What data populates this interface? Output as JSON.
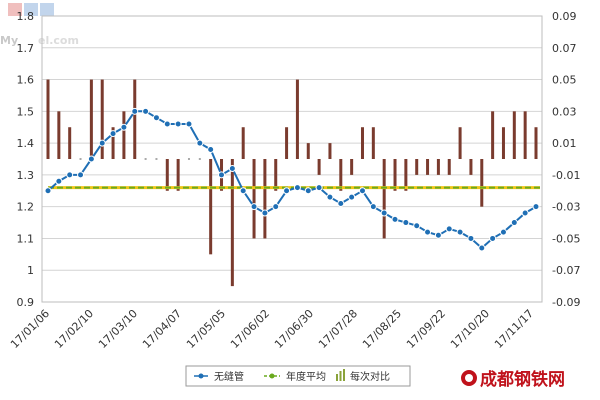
{
  "chart_data": {
    "type": "line",
    "title": "",
    "xlabel": "",
    "ylabel": "",
    "ylim": [
      0.9,
      1.8
    ],
    "y2lim": [
      -0.09,
      0.09
    ],
    "yticks": [
      "1.8",
      "1.7",
      "1.6",
      "1.5",
      "1.4",
      "1.3",
      "1.2",
      "1.1",
      "1",
      "0.9"
    ],
    "y2ticks": [
      "0.09",
      "0.07",
      "0.05",
      "0.03",
      "0.01",
      "-0.01",
      "-0.03",
      "-0.05",
      "-0.07",
      "-0.09"
    ],
    "xticks": [
      "17/01/06",
      "17/02/10",
      "17/03/10",
      "17/04/07",
      "17/05/05",
      "17/06/02",
      "17/06/30",
      "17/07/28",
      "17/08/25",
      "17/09/22",
      "17/10/20",
      "17/11/17"
    ],
    "grid": true,
    "legend_position": "bottom-center",
    "series": [
      {
        "name": "无缝管",
        "color": "#1f6fb5",
        "values": [
          1.25,
          1.28,
          1.3,
          1.3,
          1.35,
          1.4,
          1.43,
          1.45,
          1.5,
          1.5,
          1.48,
          1.46,
          1.46,
          1.46,
          1.4,
          1.38,
          1.3,
          1.32,
          1.25,
          1.2,
          1.18,
          1.2,
          1.25,
          1.26,
          1.25,
          1.26,
          1.23,
          1.21,
          1.23,
          1.25,
          1.2,
          1.18,
          1.16,
          1.15,
          1.14,
          1.12,
          1.11,
          1.13,
          1.12,
          1.1,
          1.07,
          1.1,
          1.12,
          1.15,
          1.18,
          1.2
        ]
      },
      {
        "name": "年度平均",
        "color": "#6aaa1e",
        "value": 1.26
      },
      {
        "name": "每次对比",
        "color": "#7a3b2e",
        "values": [
          0.05,
          0.03,
          0.02,
          0,
          0.05,
          0.05,
          0.02,
          0.03,
          0.05,
          0,
          0,
          -0.02,
          -0.02,
          0,
          0,
          -0.06,
          -0.02,
          -0.08,
          0.02,
          -0.05,
          -0.05,
          -0.02,
          0.02,
          0.05,
          0.01,
          -0.01,
          0.01,
          -0.02,
          -0.01,
          0.02,
          0.02,
          -0.05,
          -0.02,
          -0.02,
          -0.01,
          -0.01,
          -0.01,
          -0.01,
          0.02,
          -0.01,
          -0.03,
          0.03,
          0.02,
          0.03,
          0.03,
          0.02
        ]
      }
    ]
  },
  "watermark": {
    "brand": "成都钢铁网",
    "url_fragment": "My",
    "url_suffix": "el.com"
  }
}
